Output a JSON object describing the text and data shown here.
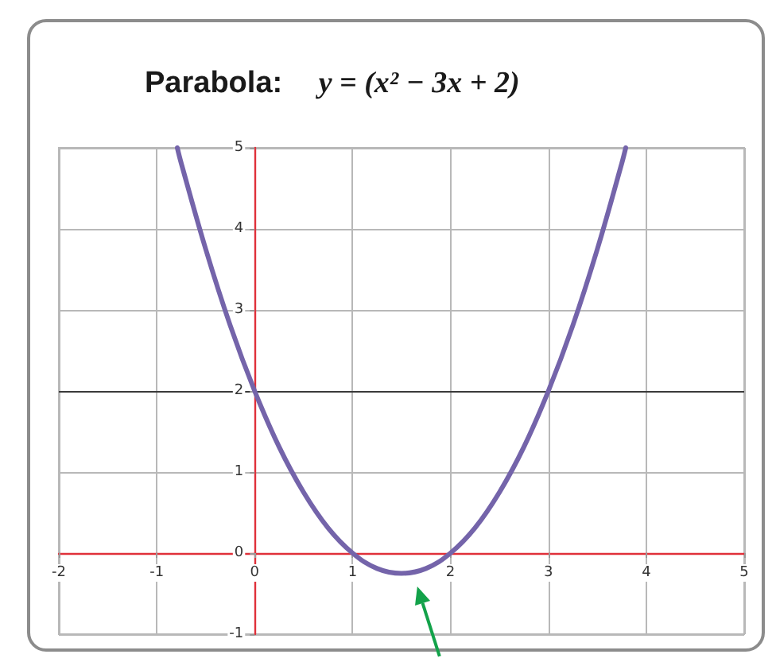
{
  "chart_data": {
    "type": "line",
    "title": "Parabola: y = (x² − 3x + 2)",
    "x": [
      -0.79,
      -0.75,
      -0.5,
      -0.25,
      0,
      0.25,
      0.5,
      0.75,
      1,
      1.25,
      1.5,
      1.75,
      2,
      2.25,
      2.5,
      2.75,
      3,
      3.25,
      3.5,
      3.75,
      3.79
    ],
    "values": [
      5,
      4.81,
      3.75,
      2.81,
      2,
      1.31,
      0.75,
      0.31,
      0,
      -0.19,
      -0.25,
      -0.19,
      0,
      0.31,
      0.75,
      1.31,
      2,
      2.81,
      3.75,
      4.81,
      5
    ],
    "color": "#7464aa",
    "xlim": [
      -2,
      5
    ],
    "xticks": [
      -2,
      -1,
      0,
      1,
      2,
      3,
      4,
      5
    ],
    "ylim": [
      -1,
      5
    ],
    "yticks": [
      -1,
      0,
      1,
      2,
      3,
      4,
      5
    ],
    "grid": true,
    "ref_lines": [
      {
        "axis": "y",
        "value": 2,
        "color": "#3a3a3a"
      }
    ]
  }
}
